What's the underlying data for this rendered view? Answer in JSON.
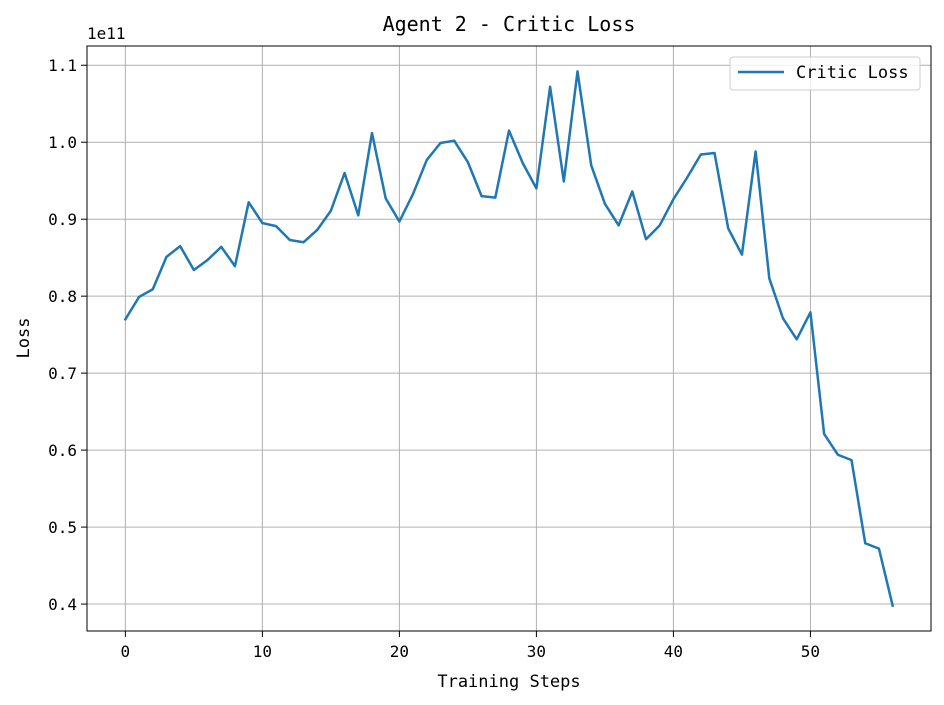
{
  "chart_data": {
    "type": "line",
    "title": "Agent 2 - Critic Loss",
    "xlabel": "Training Steps",
    "ylabel": "Loss",
    "y_offset_text": "1e11",
    "xlim": [
      -2.8,
      58.8
    ],
    "ylim": [
      0.365,
      1.125
    ],
    "xticks": [
      0,
      10,
      20,
      30,
      40,
      50
    ],
    "yticks": [
      0.4,
      0.5,
      0.6,
      0.7,
      0.8,
      0.9,
      1.0,
      1.1
    ],
    "xtick_labels": [
      "0",
      "10",
      "20",
      "30",
      "40",
      "50"
    ],
    "ytick_labels": [
      "0.4",
      "0.5",
      "0.6",
      "0.7",
      "0.8",
      "0.9",
      "1.0",
      "1.1"
    ],
    "grid": true,
    "legend_position": "top-right",
    "series": [
      {
        "name": "Critic Loss",
        "color": "#1f77b4",
        "x": [
          0,
          1,
          2,
          3,
          4,
          5,
          6,
          7,
          8,
          9,
          10,
          11,
          12,
          13,
          14,
          15,
          16,
          17,
          18,
          19,
          20,
          21,
          22,
          23,
          24,
          25,
          26,
          27,
          28,
          29,
          30,
          31,
          32,
          33,
          34,
          35,
          36,
          37,
          38,
          39,
          40,
          41,
          42,
          43,
          44,
          45,
          46,
          47,
          48,
          49,
          50,
          51,
          52,
          53,
          54,
          55,
          56
        ],
        "values": [
          0.77,
          0.799,
          0.809,
          0.851,
          0.865,
          0.834,
          0.847,
          0.864,
          0.839,
          0.922,
          0.895,
          0.891,
          0.873,
          0.87,
          0.886,
          0.911,
          0.96,
          0.905,
          1.012,
          0.927,
          0.897,
          0.933,
          0.977,
          0.999,
          1.002,
          0.974,
          0.93,
          0.928,
          1.015,
          0.973,
          0.94,
          1.072,
          0.949,
          1.092,
          0.97,
          0.92,
          0.892,
          0.936,
          0.874,
          0.892,
          0.926,
          0.954,
          0.984,
          0.986,
          0.888,
          0.854,
          0.988,
          0.823,
          0.771,
          0.744,
          0.779,
          0.621,
          0.594,
          0.587,
          0.479,
          0.472,
          0.398
        ]
      }
    ]
  }
}
